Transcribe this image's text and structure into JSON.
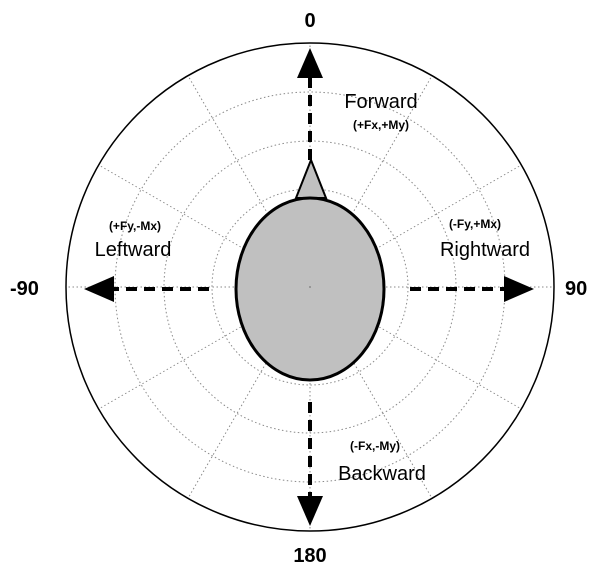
{
  "angles": {
    "top": "0",
    "right": "90",
    "bottom": "180",
    "left": "-90"
  },
  "directions": {
    "forward": {
      "label": "Forward",
      "forces": "(+Fx,+My)"
    },
    "rightward": {
      "label": "Rightward",
      "forces": "(-Fy,+Mx)"
    },
    "backward": {
      "label": "Backward",
      "forces": "(-Fx,-My)"
    },
    "leftward": {
      "label": "Leftward",
      "forces": "(+Fy,-Mx)"
    }
  },
  "colors": {
    "body_fill": "#c0c0c0",
    "outline": "#000000",
    "grid": "#8a8a8a"
  }
}
